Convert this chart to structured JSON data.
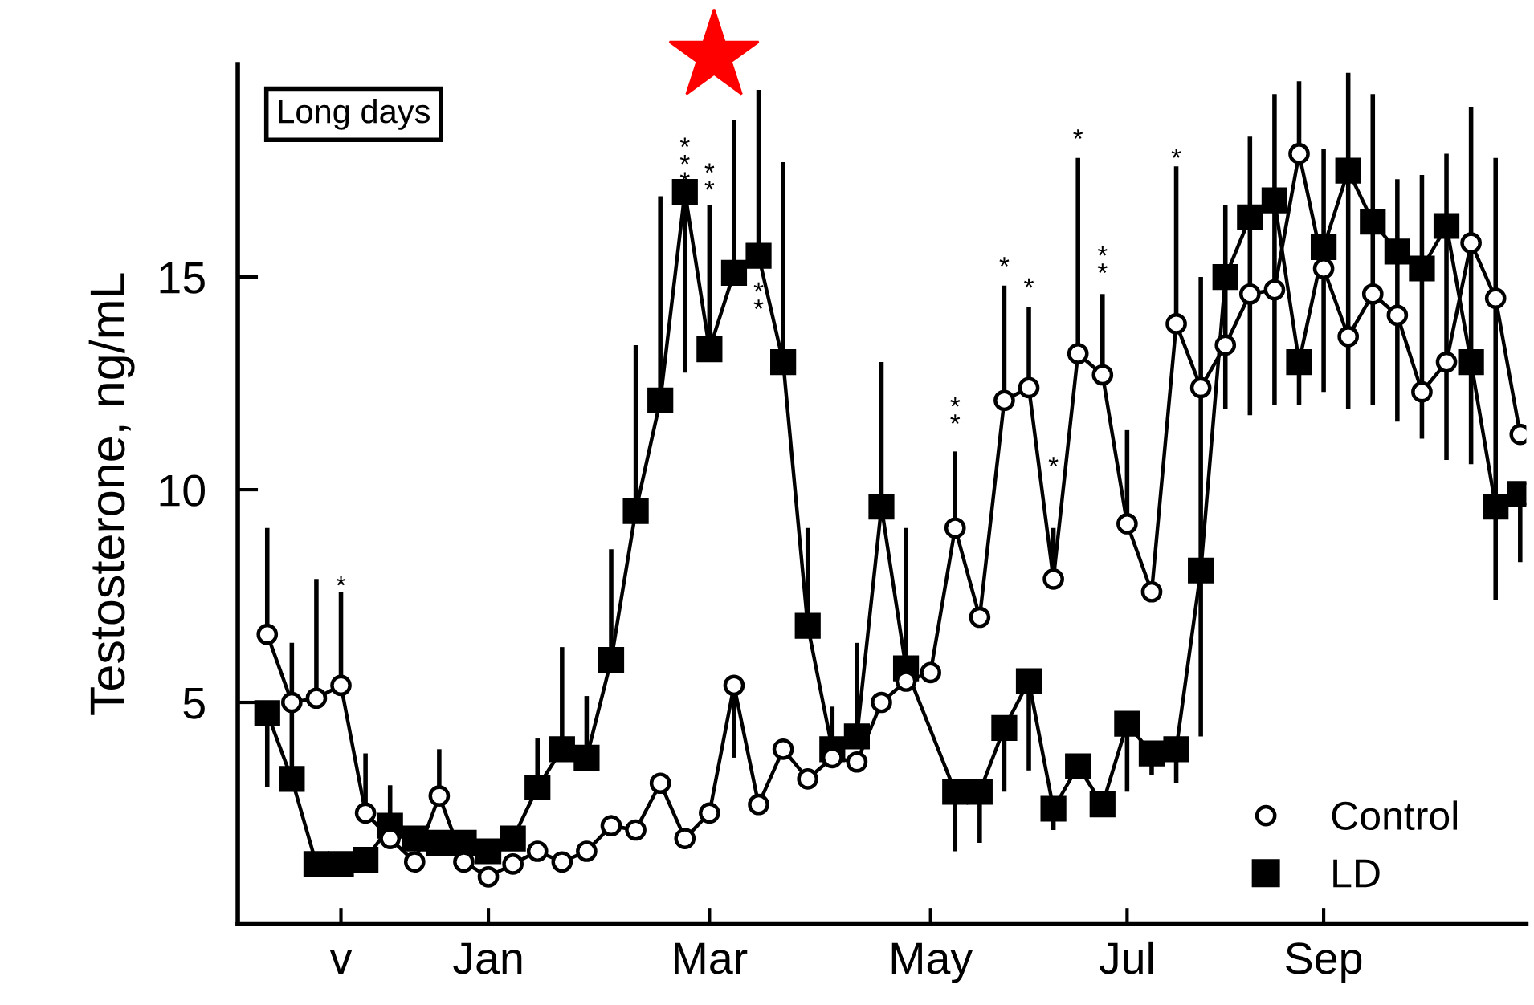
{
  "chart_data": {
    "type": "line",
    "ylabel": "Testosterone, ng/mL",
    "ylim": [
      -0.2,
      20
    ],
    "yticks": [
      5,
      10,
      15
    ],
    "categories": [
      null,
      null,
      null,
      "v",
      null,
      null,
      null,
      null,
      null,
      "Jan",
      null,
      null,
      null,
      null,
      null,
      null,
      null,
      null,
      "Mar",
      null,
      null,
      null,
      null,
      null,
      null,
      null,
      null,
      "May",
      null,
      null,
      null,
      null,
      null,
      null,
      null,
      "Jul",
      null,
      null,
      null,
      null,
      null,
      null,
      null,
      "Sep",
      null,
      null,
      null,
      null,
      null,
      null,
      null,
      null
    ],
    "legend": "bottom right",
    "line_style": "solid",
    "series": [
      {
        "name": "Control",
        "color": "#000000",
        "marker": "circle",
        "values": [
          6.6,
          5.0,
          5.1,
          5.4,
          2.4,
          1.8,
          1.25,
          2.8,
          1.25,
          0.9,
          1.2,
          1.5,
          1.25,
          1.5,
          2.1,
          2.0,
          3.1,
          1.8,
          2.4,
          5.4,
          2.6,
          3.9,
          3.2,
          3.7,
          3.6,
          5.0,
          5.5,
          5.7,
          9.1,
          7.0,
          12.1,
          12.4,
          7.9,
          13.2,
          12.7,
          9.2,
          7.6,
          13.9,
          12.4,
          13.4,
          14.6,
          14.7,
          17.9,
          15.2,
          13.6,
          14.6,
          14.1,
          12.3,
          13.0,
          15.8,
          14.5,
          11.3
        ],
        "errors": [
          [
            6.6,
            9.1
          ],
          null,
          [
            5.1,
            7.9
          ],
          [
            5.4,
            7.6
          ],
          [
            2.4,
            3.8
          ],
          null,
          null,
          [
            2.8,
            3.9
          ],
          null,
          null,
          null,
          null,
          null,
          null,
          null,
          null,
          null,
          null,
          null,
          [
            3.7,
            5.4
          ],
          null,
          null,
          null,
          null,
          null,
          null,
          null,
          null,
          [
            9.1,
            10.9
          ],
          null,
          [
            12.1,
            14.8
          ],
          [
            12.4,
            14.3
          ],
          [
            7.9,
            9.1
          ],
          [
            13.2,
            17.8
          ],
          [
            12.7,
            14.6
          ],
          [
            9.2,
            11.4
          ],
          null,
          [
            13.9,
            17.6
          ],
          null,
          null,
          null,
          null,
          [
            17.9,
            19.6
          ],
          null,
          null,
          null,
          null,
          null,
          null,
          null,
          null,
          null
        ]
      },
      {
        "name": "LD",
        "color": "#000000",
        "marker": "square",
        "values": [
          4.75,
          3.2,
          1.2,
          1.2,
          1.3,
          2.1,
          1.8,
          1.7,
          1.7,
          1.5,
          1.8,
          3.0,
          3.9,
          3.7,
          6.0,
          9.5,
          12.1,
          17.0,
          13.3,
          15.1,
          15.5,
          13.0,
          6.8,
          3.9,
          4.2,
          9.6,
          5.8,
          null,
          2.9,
          2.9,
          4.4,
          5.5,
          2.5,
          3.5,
          2.6,
          4.5,
          3.8,
          3.9,
          8.1,
          15.0,
          16.4,
          16.8,
          13.0,
          15.7,
          17.5,
          16.3,
          15.6,
          15.2,
          16.2,
          13.0,
          9.6,
          9.9
        ],
        "errors": [
          [
            3.0,
            4.75
          ],
          [
            3.2,
            6.4
          ],
          null,
          null,
          null,
          [
            2.1,
            3.05
          ],
          null,
          null,
          null,
          null,
          null,
          [
            3.0,
            4.15
          ],
          [
            3.9,
            6.3
          ],
          [
            3.7,
            5.15
          ],
          [
            6.0,
            8.6
          ],
          [
            9.5,
            13.4
          ],
          [
            12.1,
            16.9
          ],
          [
            12.75,
            17.0
          ],
          [
            13.3,
            16.7
          ],
          [
            15.1,
            18.7
          ],
          [
            15.5,
            19.4
          ],
          [
            13.0,
            17.7
          ],
          [
            6.8,
            9.1
          ],
          [
            3.9,
            4.9
          ],
          [
            4.2,
            6.4
          ],
          [
            9.6,
            13.0
          ],
          [
            5.8,
            9.1
          ],
          null,
          [
            1.5,
            2.9
          ],
          [
            1.7,
            2.9
          ],
          [
            2.9,
            4.4
          ],
          [
            3.4,
            5.5
          ],
          [
            2.0,
            2.5
          ],
          null,
          null,
          [
            2.9,
            4.5
          ],
          [
            3.3,
            3.8
          ],
          [
            3.1,
            3.9
          ],
          [
            4.2,
            15.0
          ],
          [
            11.9,
            16.7
          ],
          [
            11.75,
            18.3
          ],
          [
            12.0,
            19.3
          ],
          [
            12.0,
            13.0
          ],
          [
            12.3,
            18.0
          ],
          [
            11.9,
            19.8
          ],
          [
            12.0,
            19.3
          ],
          [
            11.6,
            17.3
          ],
          [
            11.2,
            17.4
          ],
          [
            10.7,
            17.9
          ],
          [
            10.6,
            19.0
          ],
          [
            7.4,
            17.8
          ],
          [
            8.3,
            9.9
          ]
        ]
      }
    ],
    "annotations": [
      "Long days",
      "*",
      "*\n*\n*",
      "*\n*",
      "*\n*",
      "*\n*",
      "*",
      "*",
      "*",
      "*",
      "*\n*",
      "*"
    ]
  }
}
